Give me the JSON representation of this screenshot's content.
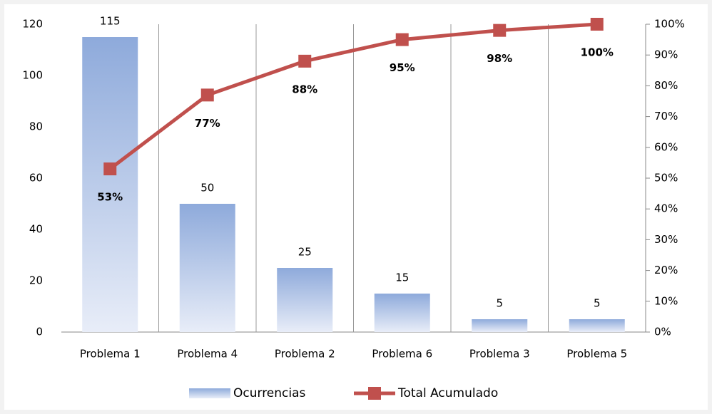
{
  "chart_data": {
    "type": "pareto",
    "categories": [
      "Problema 1",
      "Problema 4",
      "Problema 2",
      "Problema 6",
      "Problema 3",
      "Problema 5"
    ],
    "series": [
      {
        "name": "Ocurrencias",
        "type": "bar",
        "color": "#8eaadb",
        "values": [
          115,
          50,
          25,
          15,
          5,
          5
        ]
      },
      {
        "name": "Total Acumulado",
        "type": "line",
        "axis": "y2",
        "color": "#c0504d",
        "values": [
          53,
          77,
          88,
          95,
          98,
          100
        ],
        "value_labels": [
          "53%",
          "77%",
          "88%",
          "95%",
          "98%",
          "100%"
        ]
      }
    ],
    "ylim": [
      0,
      120
    ],
    "yticks": [
      0,
      20,
      40,
      60,
      80,
      100,
      120
    ],
    "y2lim": [
      0,
      100
    ],
    "y2ticks": [
      {
        "value": 0,
        "label": "0%"
      },
      {
        "value": 10,
        "label": "10%"
      },
      {
        "value": 20,
        "label": "20%"
      },
      {
        "value": 30,
        "label": "30%"
      },
      {
        "value": 40,
        "label": "40%"
      },
      {
        "value": 50,
        "label": "50%"
      },
      {
        "value": 60,
        "label": "60%"
      },
      {
        "value": 70,
        "label": "70%"
      },
      {
        "value": 80,
        "label": "80%"
      },
      {
        "value": 90,
        "label": "90%"
      },
      {
        "value": 100,
        "label": "100%"
      }
    ],
    "grid": "vertical",
    "legend": "bottom"
  }
}
